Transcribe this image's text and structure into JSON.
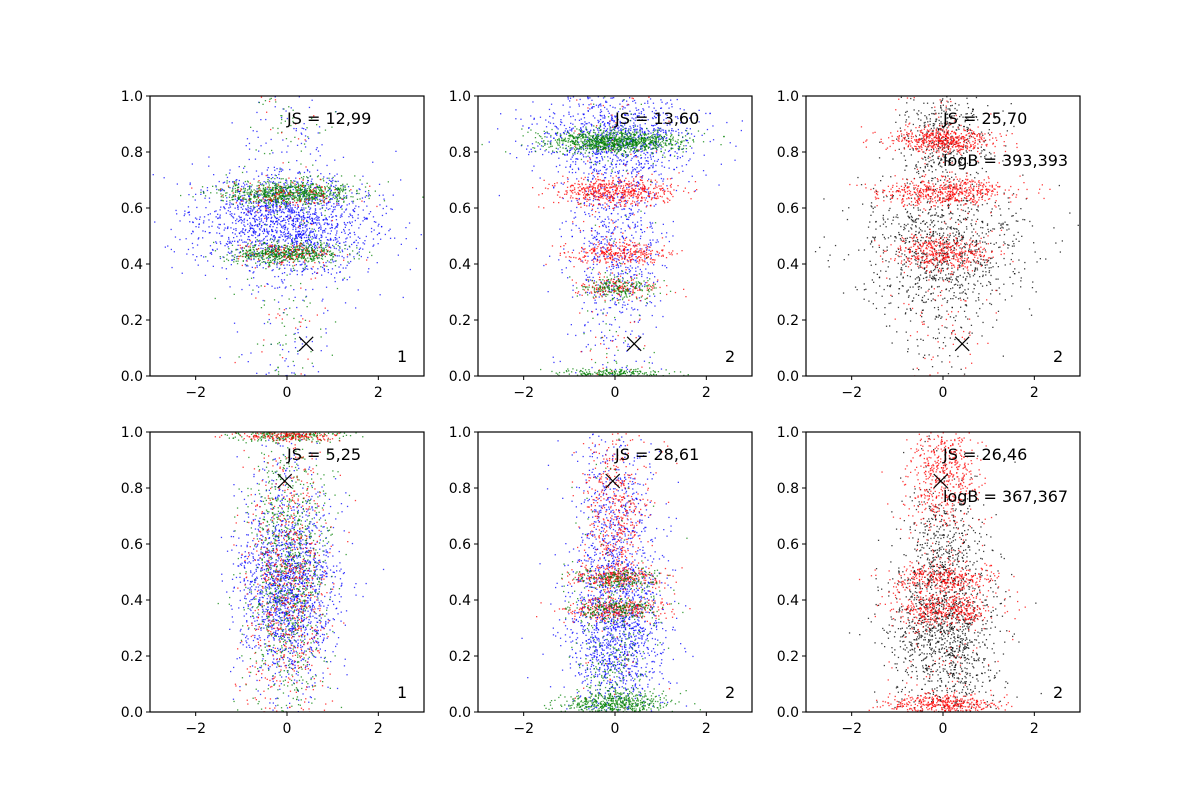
{
  "figure": {
    "background": "#ffffff"
  },
  "colors": {
    "blue": "#0000ff",
    "green": "#008000",
    "red": "#ff0000",
    "black": "#000000"
  },
  "chart_data": [
    {
      "type": "scatter",
      "xlim": [
        -3,
        3
      ],
      "ylim": [
        0,
        1
      ],
      "xticks": [
        -2,
        0,
        2
      ],
      "yticks": [
        0.0,
        0.2,
        0.4,
        0.6,
        0.8,
        1.0
      ],
      "xtick_labels": [
        "−2",
        "0",
        "2"
      ],
      "ytick_labels": [
        "0.0",
        "0.2",
        "0.4",
        "0.6",
        "0.8",
        "1.0"
      ],
      "annotations": [
        "JS = 12,99"
      ],
      "panel_label": "1",
      "marker": {
        "symbol": "x",
        "x": 0.42,
        "y": 0.115
      },
      "series": [
        {
          "color": "blue",
          "n": 1800,
          "bands": [
            {
              "y": 0.55,
              "sy": 0.09,
              "sx": 1.0,
              "w": 1
            }
          ],
          "tail": 0.12
        },
        {
          "color": "green",
          "n": 1500,
          "bands": [
            {
              "y": 0.655,
              "sy": 0.022,
              "sx": 0.75,
              "w": 0.6
            },
            {
              "y": 0.44,
              "sy": 0.018,
              "sx": 0.6,
              "w": 0.4
            }
          ],
          "tail": 0.1
        },
        {
          "color": "red",
          "n": 300,
          "bands": [
            {
              "y": 0.65,
              "sy": 0.025,
              "sx": 0.7,
              "w": 0.6
            },
            {
              "y": 0.44,
              "sy": 0.02,
              "sx": 0.6,
              "w": 0.4
            }
          ],
          "tail": 0.2
        }
      ]
    },
    {
      "type": "scatter",
      "xlim": [
        -3,
        3
      ],
      "ylim": [
        0,
        1
      ],
      "xticks": [
        -2,
        0,
        2
      ],
      "yticks": [
        0.0,
        0.2,
        0.4,
        0.6,
        0.8,
        1.0
      ],
      "xtick_labels": [
        "−2",
        "0",
        "2"
      ],
      "ytick_labels": [
        "0.0",
        "0.2",
        "0.4",
        "0.6",
        "0.8",
        "1.0"
      ],
      "annotations": [
        "JS = 13,60"
      ],
      "panel_label": "2",
      "marker": {
        "symbol": "x",
        "x": 0.42,
        "y": 0.115
      },
      "series": [
        {
          "color": "blue",
          "n": 1700,
          "bands": [
            {
              "y": 0.85,
              "sy": 0.08,
              "sx": 0.9,
              "w": 0.6
            },
            {
              "y": 0.5,
              "sy": 0.2,
              "sx": 0.55,
              "w": 0.4
            }
          ],
          "tail": 0.1
        },
        {
          "color": "red",
          "n": 1100,
          "bands": [
            {
              "y": 0.66,
              "sy": 0.025,
              "sx": 0.65,
              "w": 0.55
            },
            {
              "y": 0.44,
              "sy": 0.02,
              "sx": 0.55,
              "w": 0.3
            },
            {
              "y": 0.32,
              "sy": 0.02,
              "sx": 0.45,
              "w": 0.15
            }
          ],
          "tail": 0.1
        },
        {
          "color": "green",
          "n": 1500,
          "bands": [
            {
              "y": 0.84,
              "sy": 0.02,
              "sx": 0.75,
              "w": 0.7
            },
            {
              "y": 0.01,
              "sy": 0.01,
              "sx": 0.6,
              "w": 0.15
            },
            {
              "y": 0.32,
              "sy": 0.02,
              "sx": 0.4,
              "w": 0.15
            }
          ],
          "tail": 0.05
        }
      ]
    },
    {
      "type": "scatter",
      "xlim": [
        -3,
        3
      ],
      "ylim": [
        0,
        1
      ],
      "xticks": [
        -2,
        0,
        2
      ],
      "yticks": [
        0.0,
        0.2,
        0.4,
        0.6,
        0.8,
        1.0
      ],
      "xtick_labels": [
        "−2",
        "0",
        "2"
      ],
      "ytick_labels": [
        "0.0",
        "0.2",
        "0.4",
        "0.6",
        "0.8",
        "1.0"
      ],
      "annotations": [
        "JS = 25,70",
        "logB = 393,393"
      ],
      "panel_label": "2",
      "marker": {
        "symbol": "x",
        "x": 0.42,
        "y": 0.115
      },
      "series": [
        {
          "color": "black",
          "n": 1500,
          "bands": [
            {
              "y": 0.45,
              "sy": 0.12,
              "sx": 0.9,
              "w": 0.7
            },
            {
              "y": 0.85,
              "sy": 0.08,
              "sx": 0.5,
              "w": 0.3
            }
          ],
          "tail": 0.15
        },
        {
          "color": "red",
          "n": 1600,
          "bands": [
            {
              "y": 0.845,
              "sy": 0.025,
              "sx": 0.6,
              "w": 0.35
            },
            {
              "y": 0.66,
              "sy": 0.025,
              "sx": 0.7,
              "w": 0.35
            },
            {
              "y": 0.44,
              "sy": 0.03,
              "sx": 0.55,
              "w": 0.3
            }
          ],
          "tail": 0.1
        }
      ]
    },
    {
      "type": "scatter",
      "xlim": [
        -3,
        3
      ],
      "ylim": [
        0,
        1
      ],
      "xticks": [
        -2,
        0,
        2
      ],
      "yticks": [
        0.0,
        0.2,
        0.4,
        0.6,
        0.8,
        1.0
      ],
      "xtick_labels": [
        "−2",
        "0",
        "2"
      ],
      "ytick_labels": [
        "0.0",
        "0.2",
        "0.4",
        "0.6",
        "0.8",
        "1.0"
      ],
      "annotations": [
        "JS = 5,25"
      ],
      "panel_label": "1",
      "marker": {
        "symbol": "x",
        "x": -0.05,
        "y": 0.825
      },
      "series": [
        {
          "color": "blue",
          "n": 1700,
          "bands": [
            {
              "y": 0.45,
              "sy": 0.16,
              "sx": 0.55,
              "w": 1
            }
          ],
          "tail": 0.1
        },
        {
          "color": "green",
          "n": 1200,
          "bands": [
            {
              "y": 0.5,
              "sy": 0.25,
              "sx": 0.45,
              "w": 0.8
            },
            {
              "y": 0.99,
              "sy": 0.012,
              "sx": 0.6,
              "w": 0.2
            }
          ],
          "tail": 0.05
        },
        {
          "color": "red",
          "n": 900,
          "bands": [
            {
              "y": 0.45,
              "sy": 0.25,
              "sx": 0.45,
              "w": 0.8
            },
            {
              "y": 0.99,
              "sy": 0.012,
              "sx": 0.6,
              "w": 0.2
            }
          ],
          "tail": 0.05
        }
      ]
    },
    {
      "type": "scatter",
      "xlim": [
        -3,
        3
      ],
      "ylim": [
        0,
        1
      ],
      "xticks": [
        -2,
        0,
        2
      ],
      "yticks": [
        0.0,
        0.2,
        0.4,
        0.6,
        0.8,
        1.0
      ],
      "xtick_labels": [
        "−2",
        "0",
        "2"
      ],
      "ytick_labels": [
        "0.0",
        "0.2",
        "0.4",
        "0.6",
        "0.8",
        "1.0"
      ],
      "annotations": [
        "JS = 28,61"
      ],
      "panel_label": "2",
      "marker": {
        "symbol": "x",
        "x": -0.05,
        "y": 0.825
      },
      "series": [
        {
          "color": "blue",
          "n": 1800,
          "bands": [
            {
              "y": 0.3,
              "sy": 0.16,
              "sx": 0.55,
              "w": 0.8
            },
            {
              "y": 0.7,
              "sy": 0.15,
              "sx": 0.4,
              "w": 0.2
            }
          ],
          "tail": 0.1
        },
        {
          "color": "red",
          "n": 1100,
          "bands": [
            {
              "y": 0.48,
              "sy": 0.02,
              "sx": 0.55,
              "w": 0.3
            },
            {
              "y": 0.37,
              "sy": 0.02,
              "sx": 0.55,
              "w": 0.3
            },
            {
              "y": 0.7,
              "sy": 0.15,
              "sx": 0.35,
              "w": 0.4
            }
          ],
          "tail": 0.05
        },
        {
          "color": "green",
          "n": 1200,
          "bands": [
            {
              "y": 0.03,
              "sy": 0.025,
              "sx": 0.6,
              "w": 0.5
            },
            {
              "y": 0.48,
              "sy": 0.02,
              "sx": 0.5,
              "w": 0.15
            },
            {
              "y": 0.37,
              "sy": 0.02,
              "sx": 0.5,
              "w": 0.15
            },
            {
              "y": 0.2,
              "sy": 0.15,
              "sx": 0.4,
              "w": 0.2
            }
          ],
          "tail": 0.05
        }
      ]
    },
    {
      "type": "scatter",
      "xlim": [
        -3,
        3
      ],
      "ylim": [
        0,
        1
      ],
      "xticks": [
        -2,
        0,
        2
      ],
      "yticks": [
        0.0,
        0.2,
        0.4,
        0.6,
        0.8,
        1.0
      ],
      "xtick_labels": [
        "−2",
        "0",
        "2"
      ],
      "ytick_labels": [
        "0.0",
        "0.2",
        "0.4",
        "0.6",
        "0.8",
        "1.0"
      ],
      "annotations": [
        "JS = 26,46",
        "logB = 367,367"
      ],
      "panel_label": "2",
      "marker": {
        "symbol": "x",
        "x": -0.05,
        "y": 0.825
      },
      "series": [
        {
          "color": "black",
          "n": 1600,
          "bands": [
            {
              "y": 0.3,
              "sy": 0.15,
              "sx": 0.6,
              "w": 0.8
            },
            {
              "y": 0.6,
              "sy": 0.1,
              "sx": 0.4,
              "w": 0.2
            }
          ],
          "tail": 0.1
        },
        {
          "color": "red",
          "n": 1800,
          "bands": [
            {
              "y": 0.85,
              "sy": 0.1,
              "sx": 0.35,
              "w": 0.3
            },
            {
              "y": 0.48,
              "sy": 0.025,
              "sx": 0.55,
              "w": 0.2
            },
            {
              "y": 0.37,
              "sy": 0.03,
              "sx": 0.55,
              "w": 0.25
            },
            {
              "y": 0.03,
              "sy": 0.02,
              "sx": 0.6,
              "w": 0.25
            }
          ],
          "tail": 0.1
        }
      ]
    }
  ]
}
